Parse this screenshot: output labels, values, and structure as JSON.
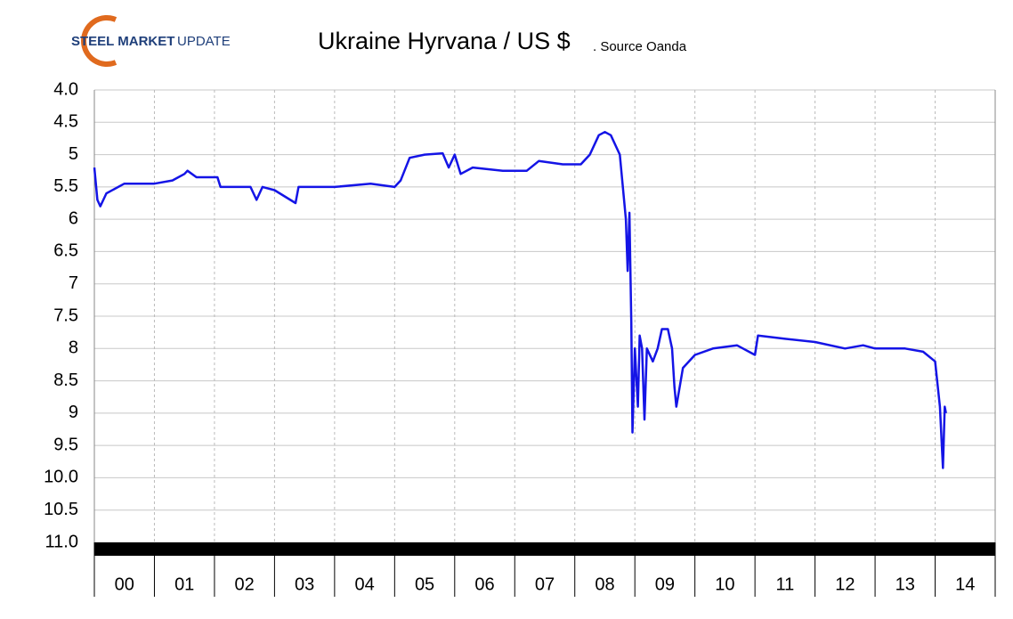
{
  "logo": [
    "STEEL MARKET",
    "UPDATE"
  ],
  "chart_data": {
    "type": "line",
    "title": "Ukraine Hyrvana / US $",
    "subtitle": ". Source Oanda",
    "categories": [
      "00",
      "01",
      "02",
      "03",
      "04",
      "05",
      "06",
      "07",
      "08",
      "09",
      "10",
      "11",
      "12",
      "13",
      "14"
    ],
    "xlim": [
      0,
      15
    ],
    "ylim": [
      4,
      11
    ],
    "inverted": true,
    "yticks": [
      {
        "value": 4,
        "label": "4.0"
      },
      4.5,
      5,
      {
        "value": 5.5,
        "label": "5.5"
      },
      6,
      {
        "value": 6.5,
        "label": "6.5"
      },
      7,
      7.5,
      8,
      8.5,
      9,
      9.5,
      {
        "value": 10,
        "label": "10.0"
      },
      10.5,
      {
        "value": 11,
        "label": "11.0"
      }
    ],
    "grid": true,
    "series": [
      {
        "color": "#1414e6",
        "x": [
          0,
          0.05,
          0.1,
          0.2,
          0.5,
          1.0,
          1.3,
          1.5,
          1.55,
          1.7,
          2.05,
          2.1,
          2.6,
          2.7,
          2.8,
          3.0,
          3.35,
          3.4,
          4.0,
          4.6,
          5.0,
          5.1,
          5.25,
          5.5,
          5.8,
          5.9,
          6.0,
          6.1,
          6.3,
          6.8,
          7.2,
          7.4,
          7.8,
          8.1,
          8.25,
          8.4,
          8.5,
          8.6,
          8.75,
          8.8,
          8.85,
          8.88,
          8.91,
          8.94,
          8.96,
          9.0,
          9.05,
          9.08,
          9.12,
          9.16,
          9.2,
          9.3,
          9.38,
          9.45,
          9.55,
          9.62,
          9.66,
          9.69,
          9.8,
          10.0,
          10.3,
          10.7,
          11.0,
          11.05,
          11.5,
          12.0,
          12.5,
          12.8,
          13.0,
          13.5,
          13.8,
          14.0,
          14.08,
          14.13,
          14.16,
          14.18
        ],
        "values": [
          5.2,
          5.7,
          5.8,
          5.6,
          5.45,
          5.45,
          5.4,
          5.3,
          5.25,
          5.35,
          5.35,
          5.5,
          5.5,
          5.7,
          5.5,
          5.55,
          5.75,
          5.5,
          5.5,
          5.45,
          5.5,
          5.4,
          5.05,
          5.0,
          4.98,
          5.2,
          5.0,
          5.3,
          5.2,
          5.25,
          5.25,
          5.1,
          5.15,
          5.15,
          5.0,
          4.7,
          4.65,
          4.7,
          5.0,
          5.5,
          6.0,
          6.8,
          5.9,
          7.6,
          9.3,
          8.0,
          8.9,
          7.8,
          8.0,
          9.1,
          8.0,
          8.2,
          8.0,
          7.7,
          7.7,
          8.0,
          8.6,
          8.9,
          8.3,
          8.1,
          8.0,
          7.95,
          8.1,
          7.8,
          7.85,
          7.9,
          8.0,
          7.95,
          8.0,
          8.0,
          8.05,
          8.2,
          8.9,
          9.85,
          8.9,
          9.0
        ]
      }
    ]
  }
}
